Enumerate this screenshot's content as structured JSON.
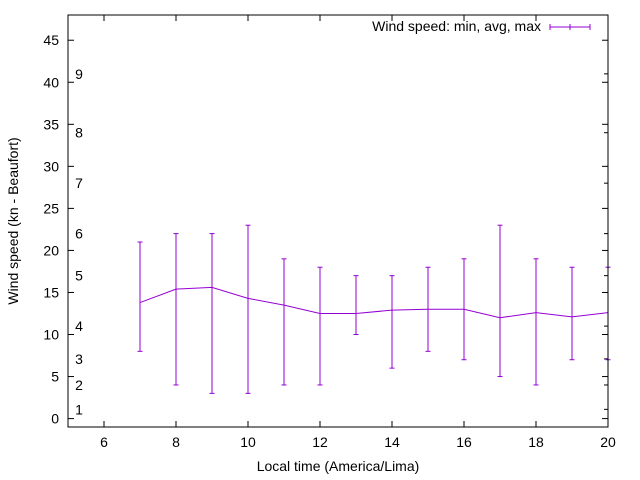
{
  "chart_data": {
    "type": "line",
    "title": "",
    "xlabel": "Local time (America/Lima)",
    "ylabel": "Wind speed (kn - Beaufort)",
    "xlim": [
      5,
      20
    ],
    "ylim": [
      -1,
      48
    ],
    "xticks": [
      6,
      8,
      10,
      12,
      14,
      16,
      18,
      20
    ],
    "yticks": [
      0,
      5,
      10,
      15,
      20,
      25,
      30,
      35,
      40,
      45
    ],
    "grid": false,
    "legend_position": "top-right",
    "beaufort_labels": [
      {
        "label": "1",
        "y": 1.1
      },
      {
        "label": "2",
        "y": 4.0
      },
      {
        "label": "3",
        "y": 7.1
      },
      {
        "label": "4",
        "y": 11.0
      },
      {
        "label": "5",
        "y": 17.0
      },
      {
        "label": "6",
        "y": 22.0
      },
      {
        "label": "7",
        "y": 28.0
      },
      {
        "label": "8",
        "y": 34.0
      },
      {
        "label": "9",
        "y": 41.0
      }
    ],
    "series": [
      {
        "name": "Wind speed: min, avg, max",
        "color": "#9400d3",
        "points": [
          {
            "x": 7,
            "min": 8,
            "avg": 13.8,
            "max": 21
          },
          {
            "x": 8,
            "min": 4,
            "avg": 15.4,
            "max": 22
          },
          {
            "x": 9,
            "min": 3,
            "avg": 15.6,
            "max": 22
          },
          {
            "x": 10,
            "min": 3,
            "avg": 14.3,
            "max": 23
          },
          {
            "x": 11,
            "min": 4,
            "avg": 13.5,
            "max": 19
          },
          {
            "x": 12,
            "min": 4,
            "avg": 12.5,
            "max": 18
          },
          {
            "x": 13,
            "min": 10,
            "avg": 12.5,
            "max": 17
          },
          {
            "x": 14,
            "min": 6,
            "avg": 12.9,
            "max": 17
          },
          {
            "x": 15,
            "min": 8,
            "avg": 13.0,
            "max": 18
          },
          {
            "x": 16,
            "min": 7,
            "avg": 13.0,
            "max": 19
          },
          {
            "x": 17,
            "min": 5,
            "avg": 12.0,
            "max": 23
          },
          {
            "x": 18,
            "min": 4,
            "avg": 12.6,
            "max": 19
          },
          {
            "x": 19,
            "min": 7,
            "avg": 12.1,
            "max": 18
          },
          {
            "x": 20,
            "min": 7,
            "avg": 12.6,
            "max": 18
          }
        ]
      }
    ]
  }
}
